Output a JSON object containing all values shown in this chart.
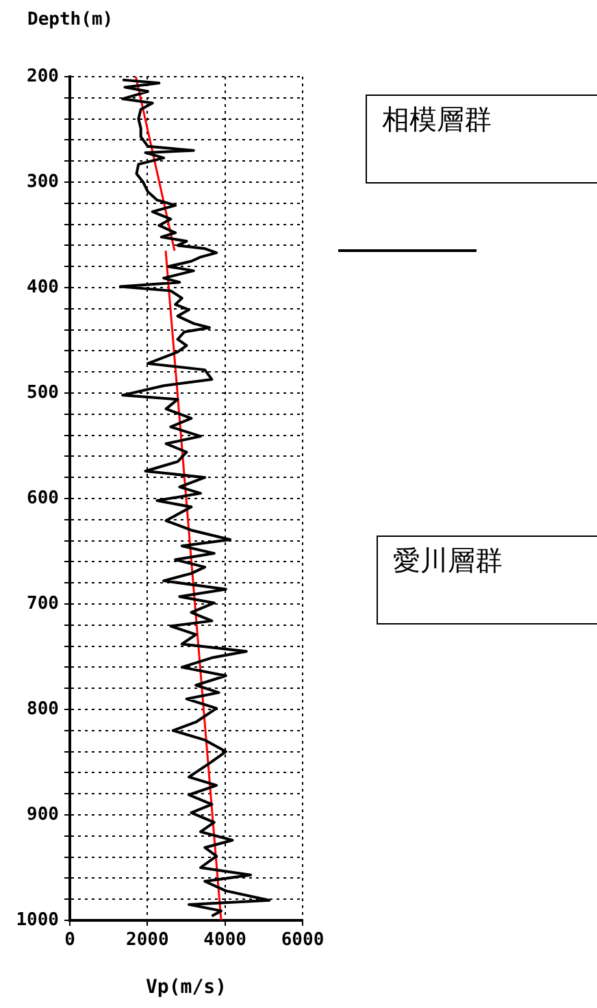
{
  "chart_data": {
    "type": "line",
    "xlabel": "Vp(m/s)",
    "ylabel": "Depth(m)",
    "annotations": [
      "相模層群",
      "愛川層群"
    ],
    "xlim": [
      0,
      6000
    ],
    "xticks": [
      0,
      2000,
      4000,
      6000
    ],
    "ylim": [
      1000,
      200
    ],
    "yticks": [
      200,
      {
        "value": 220,
        "label": null
      },
      {
        "value": 240,
        "label": null
      },
      {
        "value": 260,
        "label": null
      },
      {
        "value": 280,
        "label": null
      },
      300,
      {
        "value": 320,
        "label": null
      },
      {
        "value": 340,
        "label": null
      },
      {
        "value": 360,
        "label": null
      },
      {
        "value": 380,
        "label": null
      },
      400,
      {
        "value": 420,
        "label": null
      },
      {
        "value": 440,
        "label": null
      },
      {
        "value": 460,
        "label": null
      },
      {
        "value": 480,
        "label": null
      },
      500,
      {
        "value": 520,
        "label": null
      },
      {
        "value": 540,
        "label": null
      },
      {
        "value": 560,
        "label": null
      },
      {
        "value": 580,
        "label": null
      },
      600,
      {
        "value": 620,
        "label": null
      },
      {
        "value": 640,
        "label": null
      },
      {
        "value": 660,
        "label": null
      },
      {
        "value": 680,
        "label": null
      },
      700,
      {
        "value": 720,
        "label": null
      },
      {
        "value": 740,
        "label": null
      },
      {
        "value": 760,
        "label": null
      },
      {
        "value": 780,
        "label": null
      },
      800,
      {
        "value": 820,
        "label": null
      },
      {
        "value": 840,
        "label": null
      },
      {
        "value": 860,
        "label": null
      },
      {
        "value": 880,
        "label": null
      },
      900,
      {
        "value": 920,
        "label": null
      },
      {
        "value": 940,
        "label": null
      },
      {
        "value": 960,
        "label": null
      },
      {
        "value": 980,
        "label": null
      },
      1000
    ],
    "grid": true,
    "series": [
      {
        "type": "line",
        "color": "#000000",
        "x": [
          1360,
          2300,
          1420,
          2010,
          1360,
          2130,
          1830,
          1770,
          1830,
          1830,
          2010,
          3190,
          1950,
          2420,
          1770,
          1720,
          1890,
          2010,
          2250,
          2720,
          2130,
          2600,
          2300,
          2720,
          2360,
          3010,
          2780,
          3480,
          3780,
          3370,
          3130,
          2540,
          3190,
          2420,
          2830,
          1300,
          2600,
          2890,
          2720,
          3070,
          2780,
          3190,
          3600,
          2950,
          2780,
          3010,
          2780,
          2010,
          3480,
          3660,
          2420,
          1360,
          2780,
          2480,
          3130,
          2600,
          3370,
          2480,
          3010,
          2780,
          1950,
          3480,
          2830,
          3370,
          2250,
          3130,
          2780,
          2480,
          3130,
          4130,
          2890,
          3720,
          2720,
          3480,
          3130,
          2420,
          4020,
          2830,
          3720,
          3130,
          3660,
          2600,
          3250,
          2890,
          4550,
          3660,
          2890,
          4020,
          3250,
          3840,
          3010,
          3780,
          3250,
          2660,
          3480,
          4020,
          3600,
          3070,
          3780,
          3070,
          3660,
          3130,
          3720,
          3370,
          4190,
          3480,
          3780,
          3370,
          4660,
          3480,
          4020,
          5140,
          3070,
          3900,
          3660
        ],
        "values": [
          203,
          206,
          210,
          214,
          221,
          225,
          231,
          240,
          249,
          257,
          266,
          270,
          272,
          277,
          283,
          292,
          300,
          309,
          317,
          322,
          328,
          335,
          341,
          348,
          352,
          356,
          360,
          363,
          367,
          371,
          375,
          380,
          384,
          391,
          395,
          399,
          403,
          410,
          416,
          421,
          427,
          434,
          438,
          442,
          449,
          455,
          461,
          472,
          478,
          487,
          493,
          502,
          506,
          515,
          524,
          532,
          541,
          548,
          556,
          565,
          574,
          580,
          589,
          595,
          602,
          608,
          615,
          621,
          630,
          639,
          645,
          652,
          658,
          665,
          671,
          678,
          686,
          693,
          699,
          708,
          716,
          721,
          729,
          738,
          745,
          751,
          760,
          768,
          777,
          784,
          790,
          799,
          812,
          820,
          829,
          840,
          851,
          864,
          872,
          881,
          890,
          898,
          907,
          916,
          924,
          931,
          939,
          950,
          957,
          963,
          972,
          981,
          985,
          991,
          996
        ]
      },
      {
        "type": "line",
        "color": "#ff0000",
        "x": [
          1700,
          2700
        ],
        "values": [
          200,
          365
        ]
      },
      {
        "type": "line",
        "color": "#ff0000",
        "x": [
          2470,
          3900
        ],
        "values": [
          365,
          1000
        ]
      }
    ]
  }
}
